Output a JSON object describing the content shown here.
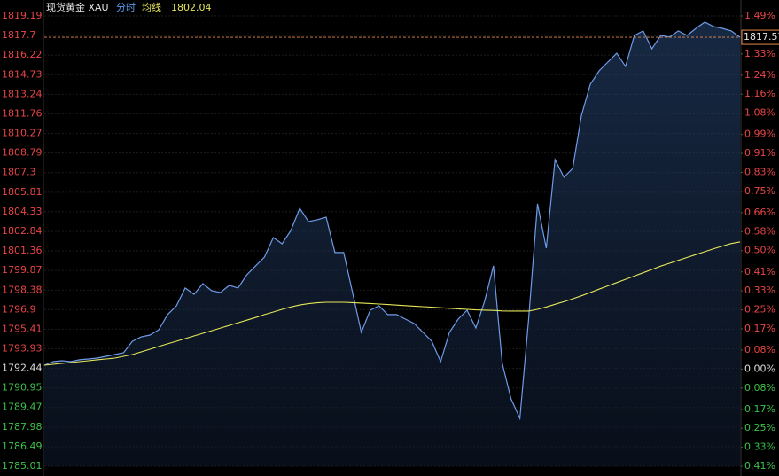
{
  "chart_data": {
    "type": "line",
    "title": "现货黄金 XAU",
    "mode_label": "分时",
    "avg_label": "均线",
    "series": [
      {
        "name": "price",
        "color": "#6f9be8",
        "values": [
          1792.68,
          1792.95,
          1793.02,
          1792.95,
          1793.09,
          1793.15,
          1793.22,
          1793.35,
          1793.49,
          1793.62,
          1794.5,
          1794.83,
          1794.97,
          1795.37,
          1796.52,
          1797.19,
          1798.54,
          1798.06,
          1798.87,
          1798.33,
          1798.2,
          1798.74,
          1798.54,
          1799.54,
          1800.22,
          1800.89,
          1802.37,
          1801.9,
          1802.91,
          1804.59,
          1803.58,
          1803.72,
          1803.92,
          1801.23,
          1801.23,
          1798.2,
          1795.17,
          1796.85,
          1797.19,
          1796.52,
          1796.52,
          1796.18,
          1795.84,
          1795.17,
          1794.5,
          1792.95,
          1795.17,
          1796.18,
          1796.85,
          1795.51,
          1797.53,
          1800.22,
          1792.82,
          1790.13,
          1788.64,
          1796.18,
          1804.93,
          1801.56,
          1808.29,
          1806.95,
          1807.62,
          1811.65,
          1814.01,
          1815.02,
          1815.69,
          1816.36,
          1815.36,
          1817.71,
          1818.05,
          1816.7,
          1817.71,
          1817.58,
          1818.05,
          1817.71,
          1818.25,
          1818.72,
          1818.38,
          1818.25,
          1818.05,
          1817.57
        ]
      },
      {
        "name": "均线",
        "color": "#e6e65a",
        "values": [
          1792.68,
          1792.75,
          1792.82,
          1792.88,
          1792.95,
          1793.02,
          1793.09,
          1793.15,
          1793.22,
          1793.35,
          1793.49,
          1793.69,
          1793.89,
          1794.1,
          1794.3,
          1794.5,
          1794.7,
          1794.9,
          1795.1,
          1795.3,
          1795.5,
          1795.7,
          1795.9,
          1796.1,
          1796.3,
          1796.52,
          1796.72,
          1796.92,
          1797.1,
          1797.25,
          1797.35,
          1797.42,
          1797.46,
          1797.46,
          1797.46,
          1797.43,
          1797.4,
          1797.36,
          1797.32,
          1797.28,
          1797.24,
          1797.2,
          1797.16,
          1797.12,
          1797.08,
          1797.04,
          1797.0,
          1796.96,
          1796.92,
          1796.88,
          1796.86,
          1796.84,
          1796.8,
          1796.79,
          1796.79,
          1796.79,
          1796.92,
          1797.1,
          1797.3,
          1797.5,
          1797.72,
          1797.95,
          1798.2,
          1798.45,
          1798.7,
          1798.95,
          1799.2,
          1799.45,
          1799.7,
          1799.95,
          1800.2,
          1800.42,
          1800.64,
          1800.86,
          1801.08,
          1801.3,
          1801.52,
          1801.72,
          1801.92,
          1802.04
        ]
      }
    ],
    "ylim": [
      1785.01,
      1819.19
    ],
    "yticks": [
      1819.19,
      1817.7,
      1816.22,
      1814.73,
      1813.24,
      1811.76,
      1810.27,
      1808.79,
      1807.3,
      1805.81,
      1804.33,
      1802.84,
      1801.36,
      1799.87,
      1798.38,
      1796.9,
      1795.41,
      1793.93,
      1792.44,
      1790.95,
      1789.47,
      1787.98,
      1786.49,
      1785.01
    ],
    "y2lim": [
      -0.41,
      1.49
    ],
    "y2ticks": [
      {
        "value": 1.49,
        "label": "1.49%"
      },
      {
        "value": 1.41,
        "label": "1.41%"
      },
      {
        "value": 1.33,
        "label": "1.33%"
      },
      {
        "value": 1.24,
        "label": "1.24%"
      },
      {
        "value": 1.16,
        "label": "1.16%"
      },
      {
        "value": 1.08,
        "label": "1.08%"
      },
      {
        "value": 0.99,
        "label": "0.99%"
      },
      {
        "value": 0.91,
        "label": "0.91%"
      },
      {
        "value": 0.83,
        "label": "0.83%"
      },
      {
        "value": 0.75,
        "label": "0.75%"
      },
      {
        "value": 0.66,
        "label": "0.66%"
      },
      {
        "value": 0.58,
        "label": "0.58%"
      },
      {
        "value": 0.5,
        "label": "0.50%"
      },
      {
        "value": 0.41,
        "label": "0.41%"
      },
      {
        "value": 0.33,
        "label": "0.33%"
      },
      {
        "value": 0.25,
        "label": "0.25%"
      },
      {
        "value": 0.17,
        "label": "0.17%"
      },
      {
        "value": 0.08,
        "label": "0.08%"
      },
      {
        "value": 0,
        "label": "0.00%"
      },
      {
        "value": -0.08,
        "label": "0.08%"
      },
      {
        "value": -0.17,
        "label": "0.17%"
      },
      {
        "value": -0.25,
        "label": "0.25%"
      },
      {
        "value": -0.33,
        "label": "0.33%"
      },
      {
        "value": -0.41,
        "label": "0.41%"
      }
    ],
    "grid": true,
    "up_color": "#e84545",
    "down_color": "#3cc04a",
    "flat_color": "#dddddd"
  }
}
